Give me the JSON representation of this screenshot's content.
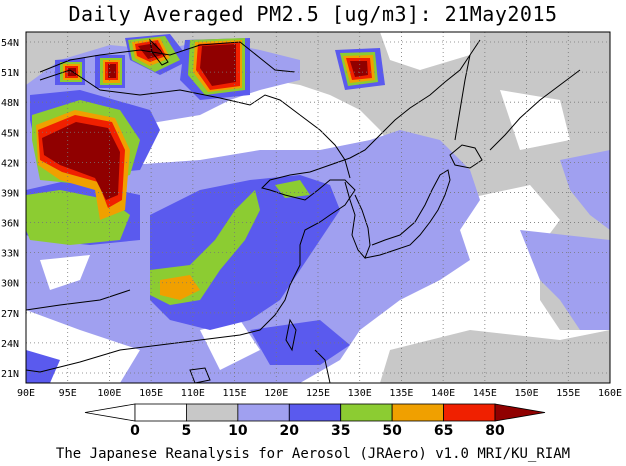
{
  "title": "Daily Averaged PM2.5 [ug/m3]: 21May2015",
  "caption": "The Japanese Reanalysis for Aerosol (JRAero) v1.0 MRI/KU_RIAM",
  "axes": {
    "lon_labels": [
      "90E",
      "95E",
      "100E",
      "105E",
      "110E",
      "115E",
      "120E",
      "125E",
      "130E",
      "135E",
      "140E",
      "145E",
      "150E",
      "155E",
      "160E"
    ],
    "lat_labels": [
      "54N",
      "51N",
      "48N",
      "45N",
      "42N",
      "39N",
      "36N",
      "33N",
      "30N",
      "27N",
      "24N",
      "21N"
    ],
    "lon_range": [
      90,
      160
    ],
    "lat_range": [
      20,
      55
    ]
  },
  "legend": {
    "levels": [
      "0",
      "5",
      "10",
      "20",
      "35",
      "50",
      "65",
      "80"
    ],
    "colors": [
      "#ffffff",
      "#ffffff",
      "#c8c8c8",
      "#a0a0f0",
      "#5a5aee",
      "#8ccc32",
      "#f0a000",
      "#f02000",
      "#900000"
    ]
  },
  "palette": {
    "c5": "#c8c8c8",
    "c10": "#a0a0f0",
    "c20": "#5a5aee",
    "c35": "#8ccc32",
    "c50": "#f0a000",
    "c65": "#f02000",
    "c80": "#900000"
  }
}
